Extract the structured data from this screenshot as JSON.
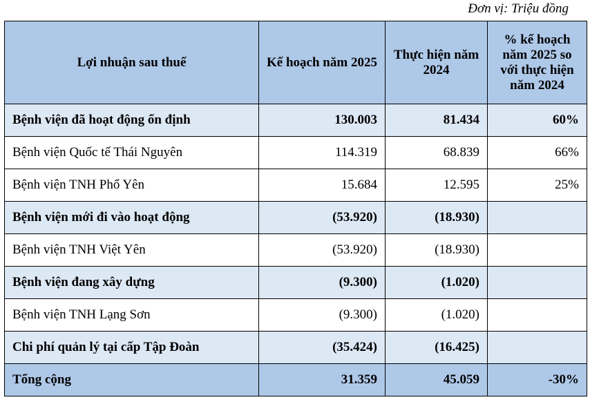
{
  "unit_label": "Đơn vị: Triệu đồng",
  "headers": [
    "Lợi nhuận sau thuế",
    "Kế hoạch năm 2025",
    "Thực hiện năm 2024",
    "% kế hoạch năm 2025 so với thực hiện năm 2024"
  ],
  "rows": [
    {
      "name": "Bệnh viện đã hoạt động ổn định",
      "plan": "130.003",
      "actual": "81.434",
      "pct": "60%",
      "style": "bold"
    },
    {
      "name": "Bệnh viện Quốc tế Thái Nguyên",
      "plan": "114.319",
      "actual": "68.839",
      "pct": "66%",
      "style": "plain"
    },
    {
      "name": "Bệnh viện TNH Phổ Yên",
      "plan": "15.684",
      "actual": "12.595",
      "pct": "25%",
      "style": "plain"
    },
    {
      "name": "Bệnh viện mới đi vào hoạt động",
      "plan": "(53.920)",
      "actual": "(18.930)",
      "pct": "",
      "style": "bold"
    },
    {
      "name": "Bệnh viện TNH Việt Yên",
      "plan": "(53.920)",
      "actual": "(18.930)",
      "pct": "",
      "style": "plain"
    },
    {
      "name": "Bệnh viện đang xây dựng",
      "plan": "(9.300)",
      "actual": "(1.020)",
      "pct": "",
      "style": "bold"
    },
    {
      "name": "Bệnh viện TNH Lạng Sơn",
      "plan": "(9.300)",
      "actual": "(1.020)",
      "pct": "",
      "style": "plain"
    },
    {
      "name": "Chi phí quản lý tại cấp Tập Đoàn",
      "plan": "(35.424)",
      "actual": "(16.425)",
      "pct": "",
      "style": "bold"
    },
    {
      "name": "Tổng cộng",
      "plan": "31.359",
      "actual": "45.059",
      "pct": "-30%",
      "style": "total"
    }
  ]
}
